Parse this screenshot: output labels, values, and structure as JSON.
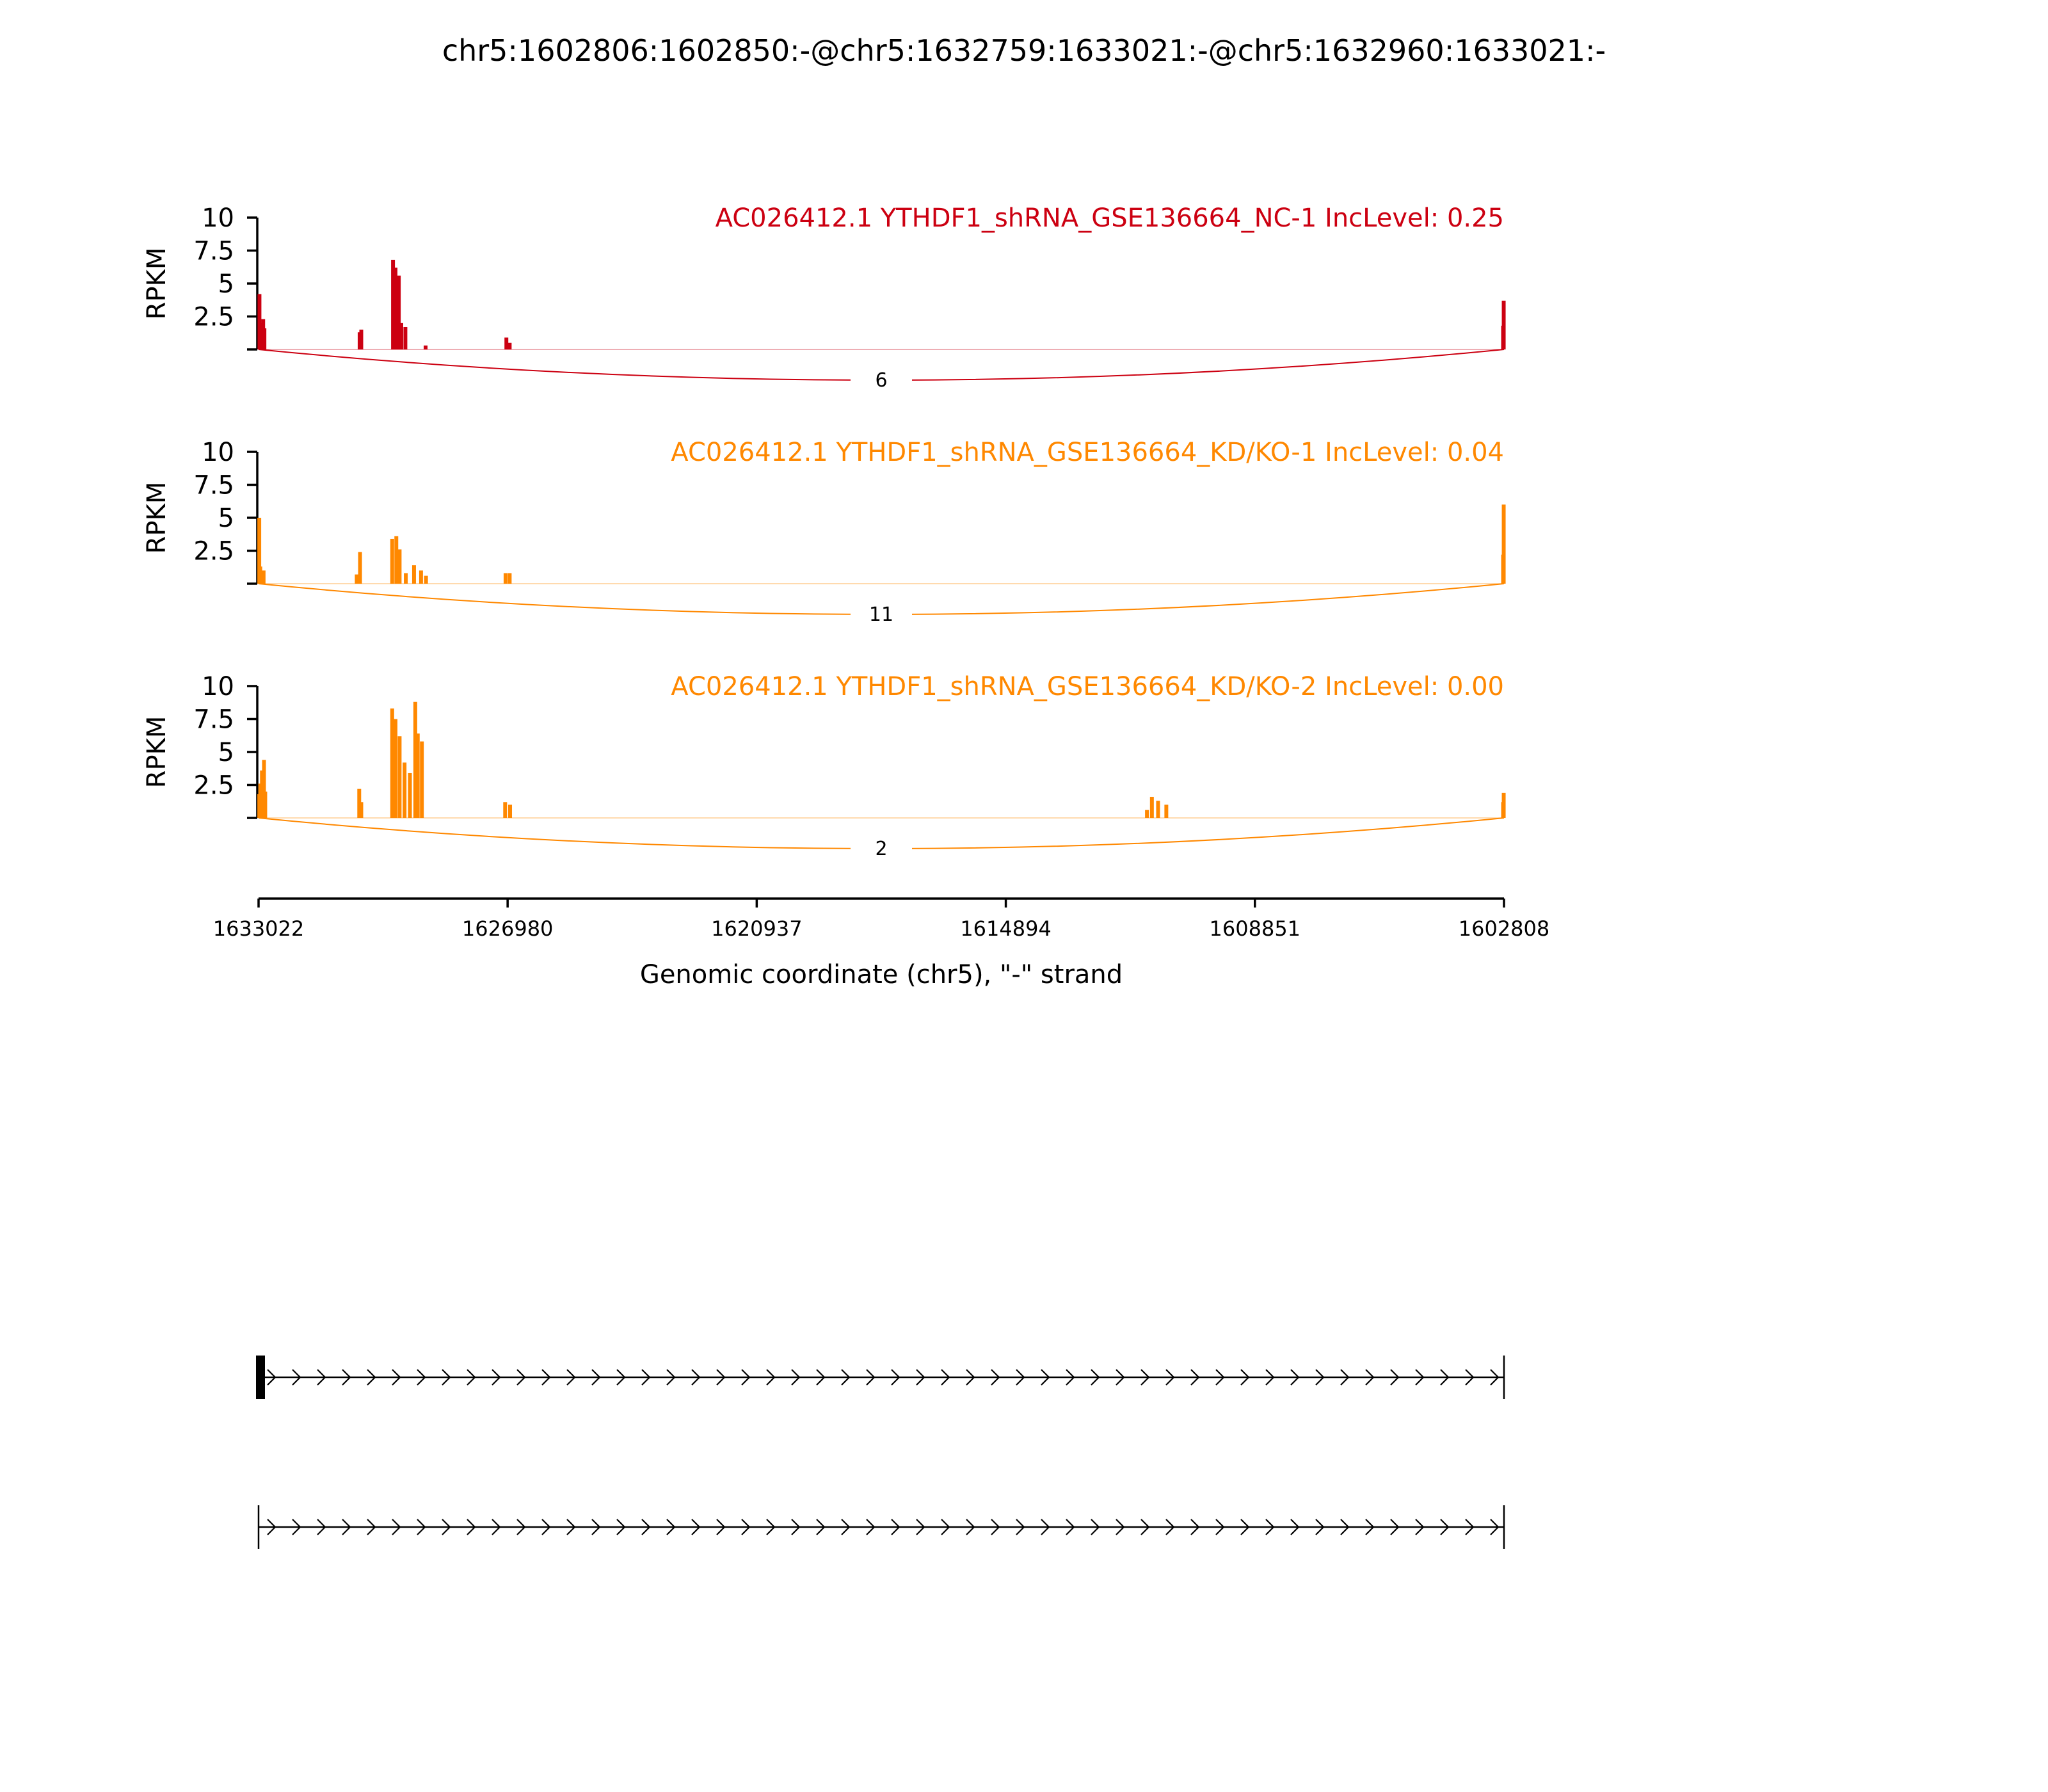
{
  "figure_title": "chr5:1602806:1602850:-@chr5:1632759:1633021:-@chr5:1632960:1633021:-",
  "colors": {
    "nc": "#cc0011",
    "kd": "#ff8800",
    "axis": "#000000"
  },
  "chart_data": {
    "type": "area",
    "title": "chr5:1602806:1602850:-@chr5:1632759:1633021:-@chr5:1632960:1633021:-",
    "xlabel": "Genomic coordinate (chr5), \"-\" strand",
    "x_ticks": [
      "1633022",
      "1626980",
      "1620937",
      "1614894",
      "1608851",
      "1602808"
    ],
    "x_range": [
      1633022,
      1602808
    ],
    "x_direction": "reversed",
    "ylabel": "RPKM",
    "ylim": [
      0,
      10
    ],
    "y_ticks": [
      "2.5",
      "5",
      "7.5",
      "10"
    ],
    "grid": false,
    "tracks": [
      {
        "name": "AC026412.1 YTHDF1_shRNA_GSE136664_NC-1 IncLevel: 0.25",
        "color": "#cc0011",
        "junction": {
          "from": 1633022,
          "to": 1602808,
          "count": "6"
        },
        "coverage": [
          {
            "x": 1633000,
            "y": 4.2
          },
          {
            "x": 1632980,
            "y": 2.0
          },
          {
            "x": 1632940,
            "y": 1.5
          },
          {
            "x": 1632910,
            "y": 2.3
          },
          {
            "x": 1632880,
            "y": 1.6
          },
          {
            "x": 1630570,
            "y": 1.3
          },
          {
            "x": 1630530,
            "y": 1.5
          },
          {
            "x": 1629760,
            "y": 6.8
          },
          {
            "x": 1629700,
            "y": 6.2
          },
          {
            "x": 1629620,
            "y": 5.6
          },
          {
            "x": 1629560,
            "y": 2.0
          },
          {
            "x": 1629460,
            "y": 1.7
          },
          {
            "x": 1628970,
            "y": 0.3
          },
          {
            "x": 1627010,
            "y": 0.9
          },
          {
            "x": 1626930,
            "y": 0.5
          },
          {
            "x": 1602830,
            "y": 1.8
          },
          {
            "x": 1602815,
            "y": 3.7
          }
        ]
      },
      {
        "name": "AC026412.1 YTHDF1_shRNA_GSE136664_KD/KO-1 IncLevel: 0.04",
        "color": "#ff8800",
        "junction": {
          "from": 1633022,
          "to": 1602808,
          "count": "11"
        },
        "coverage": [
          {
            "x": 1633005,
            "y": 5.0
          },
          {
            "x": 1632980,
            "y": 1.3
          },
          {
            "x": 1632900,
            "y": 1.0
          },
          {
            "x": 1630640,
            "y": 0.7
          },
          {
            "x": 1630560,
            "y": 2.4
          },
          {
            "x": 1629780,
            "y": 3.4
          },
          {
            "x": 1629680,
            "y": 3.6
          },
          {
            "x": 1629600,
            "y": 2.6
          },
          {
            "x": 1629450,
            "y": 0.8
          },
          {
            "x": 1629250,
            "y": 1.4
          },
          {
            "x": 1629080,
            "y": 1.0
          },
          {
            "x": 1628960,
            "y": 0.6
          },
          {
            "x": 1627030,
            "y": 0.8
          },
          {
            "x": 1626930,
            "y": 0.8
          },
          {
            "x": 1602830,
            "y": 2.2
          },
          {
            "x": 1602815,
            "y": 6.0
          }
        ]
      },
      {
        "name": "AC026412.1 YTHDF1_shRNA_GSE136664_KD/KO-2 IncLevel: 0.00",
        "color": "#ff8800",
        "junction": {
          "from": 1633022,
          "to": 1602808,
          "count": "2"
        },
        "coverage": [
          {
            "x": 1633005,
            "y": 1.8
          },
          {
            "x": 1632980,
            "y": 2.6
          },
          {
            "x": 1632940,
            "y": 3.6
          },
          {
            "x": 1632890,
            "y": 4.4
          },
          {
            "x": 1632860,
            "y": 2.0
          },
          {
            "x": 1630580,
            "y": 2.2
          },
          {
            "x": 1630530,
            "y": 1.2
          },
          {
            "x": 1629780,
            "y": 8.3
          },
          {
            "x": 1629700,
            "y": 7.5
          },
          {
            "x": 1629600,
            "y": 6.2
          },
          {
            "x": 1629480,
            "y": 4.2
          },
          {
            "x": 1629350,
            "y": 3.4
          },
          {
            "x": 1629220,
            "y": 8.8
          },
          {
            "x": 1629160,
            "y": 6.4
          },
          {
            "x": 1629060,
            "y": 5.8
          },
          {
            "x": 1627040,
            "y": 1.2
          },
          {
            "x": 1626920,
            "y": 1.0
          },
          {
            "x": 1611470,
            "y": 0.6
          },
          {
            "x": 1611350,
            "y": 1.6
          },
          {
            "x": 1611200,
            "y": 1.3
          },
          {
            "x": 1611000,
            "y": 1.0
          },
          {
            "x": 1602830,
            "y": 1.2
          },
          {
            "x": 1602815,
            "y": 1.9
          }
        ]
      }
    ],
    "gene_models": [
      {
        "start": 1633022,
        "end": 1602808,
        "exon_start": 1633022,
        "exon_end": 1632900,
        "has_exon": true
      },
      {
        "start": 1633022,
        "end": 1602808,
        "has_exon": false
      }
    ]
  }
}
